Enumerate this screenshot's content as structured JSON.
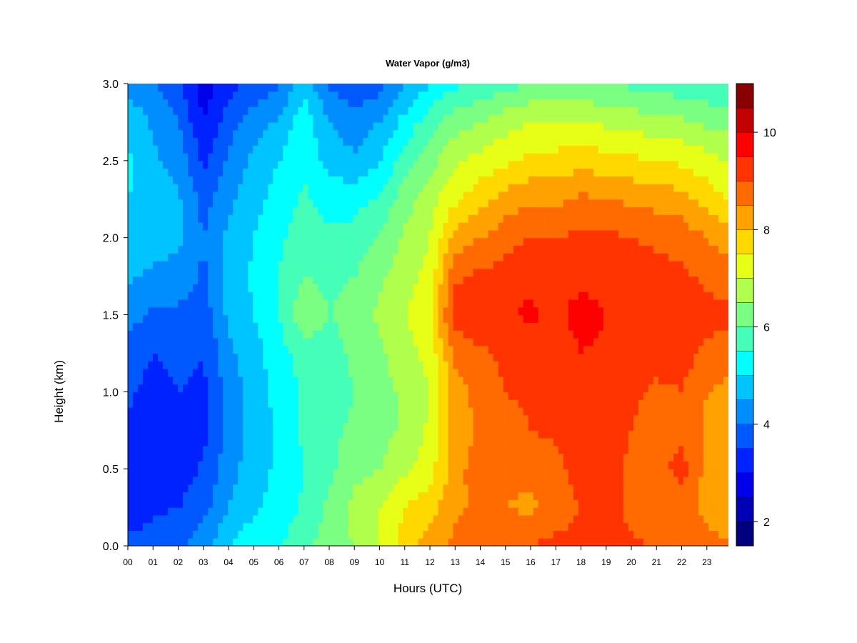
{
  "chart_data": {
    "type": "heatmap",
    "title": "Water Vapor (g/m3)",
    "xlabel": "Hours (UTC)",
    "ylabel": "Height (km)",
    "x_ticks": [
      "00",
      "01",
      "02",
      "03",
      "04",
      "05",
      "06",
      "07",
      "08",
      "09",
      "10",
      "11",
      "12",
      "13",
      "14",
      "15",
      "16",
      "17",
      "18",
      "19",
      "20",
      "21",
      "22",
      "23"
    ],
    "y_ticks": [
      "0.0",
      "0.5",
      "1.0",
      "1.5",
      "2.0",
      "2.5",
      "3.0"
    ],
    "xlim": [
      0,
      24
    ],
    "ylim": [
      0.0,
      3.0
    ],
    "colorbar": {
      "levels": [
        1.5,
        2,
        2.5,
        3,
        3.5,
        4,
        4.5,
        5,
        5.5,
        6,
        6.5,
        7,
        7.5,
        8,
        8.5,
        9,
        9.5,
        10,
        10.5,
        11
      ],
      "tick_labels": [
        "2",
        "4",
        "6",
        "8",
        "10"
      ],
      "tick_values": [
        2,
        4,
        6,
        8,
        10
      ],
      "colors": [
        "#00007f",
        "#0000b5",
        "#0000ea",
        "#0022ff",
        "#0058ff",
        "#008eff",
        "#00c4ff",
        "#0ff",
        "#45ffb9",
        "#7aff83",
        "#b0ff4c",
        "#e7ff16",
        "#ffd800",
        "#ffa100",
        "#ff6b00",
        "#ff3400",
        "#fd0000",
        "#c30000",
        "#890000"
      ]
    },
    "grid": false,
    "legend": "colorbar-right",
    "hours": [
      0,
      1,
      2,
      3,
      4,
      5,
      6,
      7,
      8,
      9,
      10,
      11,
      12,
      13,
      14,
      15,
      16,
      17,
      18,
      19,
      20,
      21,
      22,
      23,
      24
    ],
    "heights_km": [
      0.0,
      0.25,
      0.5,
      0.75,
      1.0,
      1.25,
      1.5,
      1.75,
      2.0,
      2.25,
      2.5,
      2.75,
      3.0
    ],
    "values": [
      [
        3.6,
        3.7,
        3.9,
        4.3,
        5.0,
        5.4,
        5.4,
        5.9,
        6.2,
        6.5,
        7.0,
        7.8,
        8.2,
        8.6,
        8.8,
        8.9,
        9.0,
        9.2,
        9.2,
        9.3,
        9.1,
        8.9,
        8.8,
        8.6,
        8.5
      ],
      [
        3.3,
        3.4,
        3.5,
        3.8,
        4.5,
        4.9,
        5.2,
        5.6,
        6.1,
        6.7,
        7.0,
        7.5,
        7.8,
        8.4,
        8.6,
        8.5,
        8.4,
        8.6,
        9.0,
        9.3,
        8.8,
        8.8,
        8.6,
        8.4,
        8.3
      ],
      [
        3.2,
        3.1,
        3.2,
        3.6,
        4.3,
        4.8,
        5.1,
        5.5,
        5.9,
        6.3,
        6.5,
        6.9,
        7.3,
        8.3,
        8.8,
        8.7,
        8.6,
        8.8,
        9.3,
        9.2,
        8.9,
        8.8,
        9.2,
        8.3,
        8.1
      ],
      [
        3.4,
        3.2,
        3.3,
        3.3,
        4.1,
        4.7,
        5.1,
        5.6,
        5.9,
        6.1,
        6.3,
        6.6,
        7.1,
        8.2,
        8.6,
        8.8,
        9.0,
        9.1,
        9.5,
        9.2,
        9.0,
        8.8,
        8.9,
        8.4,
        8.2
      ],
      [
        3.6,
        3.3,
        3.5,
        3.4,
        4.2,
        4.7,
        5.2,
        5.6,
        5.8,
        6.0,
        6.3,
        6.6,
        7.0,
        8.3,
        8.7,
        9.0,
        9.1,
        9.1,
        9.4,
        9.2,
        9.1,
        8.9,
        9.0,
        8.5,
        8.3
      ],
      [
        3.8,
        3.5,
        3.6,
        3.5,
        4.4,
        4.8,
        5.3,
        5.7,
        5.8,
        6.1,
        6.4,
        6.8,
        7.2,
        8.6,
        8.9,
        9.1,
        9.2,
        9.2,
        9.5,
        9.4,
        9.3,
        9.2,
        9.2,
        8.9,
        8.7
      ],
      [
        4.2,
        3.9,
        3.9,
        3.7,
        4.6,
        5.0,
        5.5,
        6.4,
        6.0,
        6.2,
        6.6,
        7.0,
        7.4,
        9.3,
        9.4,
        9.4,
        9.6,
        9.4,
        9.7,
        9.5,
        9.5,
        9.3,
        9.3,
        9.2,
        9.1
      ],
      [
        4.6,
        4.4,
        4.3,
        3.9,
        4.7,
        5.1,
        5.5,
        6.0,
        5.9,
        6.0,
        6.4,
        6.8,
        7.2,
        8.9,
        9.1,
        9.2,
        9.4,
        9.2,
        9.4,
        9.3,
        9.3,
        9.2,
        9.1,
        8.9,
        8.7
      ],
      [
        4.8,
        4.7,
        4.6,
        4.0,
        4.6,
        5.0,
        5.4,
        5.8,
        5.6,
        5.7,
        6.1,
        6.6,
        7.0,
        8.2,
        8.5,
        8.8,
        9.0,
        9.0,
        9.1,
        9.1,
        9.0,
        8.9,
        8.8,
        8.5,
        8.2
      ],
      [
        5.0,
        4.9,
        4.6,
        3.8,
        4.4,
        4.8,
        5.2,
        5.6,
        5.3,
        5.3,
        5.6,
        6.3,
        6.8,
        7.4,
        7.8,
        8.2,
        8.4,
        8.4,
        8.6,
        8.5,
        8.4,
        8.3,
        8.2,
        7.8,
        7.4
      ],
      [
        5.1,
        4.6,
        4.3,
        3.4,
        4.1,
        4.6,
        5.0,
        5.4,
        4.8,
        4.6,
        5.0,
        5.7,
        6.3,
        6.9,
        7.2,
        7.4,
        7.6,
        7.7,
        7.8,
        7.7,
        7.6,
        7.5,
        7.4,
        7.2,
        6.9
      ],
      [
        4.9,
        4.4,
        4.0,
        3.0,
        3.8,
        4.3,
        4.6,
        5.3,
        4.5,
        4.2,
        4.5,
        5.2,
        5.8,
        6.3,
        6.5,
        6.8,
        7.0,
        7.0,
        7.0,
        6.9,
        6.8,
        6.7,
        6.6,
        6.4,
        6.3
      ],
      [
        4.3,
        4.0,
        3.6,
        2.7,
        3.3,
        3.6,
        3.9,
        4.9,
        3.9,
        3.6,
        3.8,
        4.4,
        5.0,
        5.4,
        5.6,
        5.8,
        6.0,
        6.1,
        6.1,
        6.0,
        5.9,
        5.8,
        5.7,
        5.6,
        5.5
      ]
    ]
  }
}
